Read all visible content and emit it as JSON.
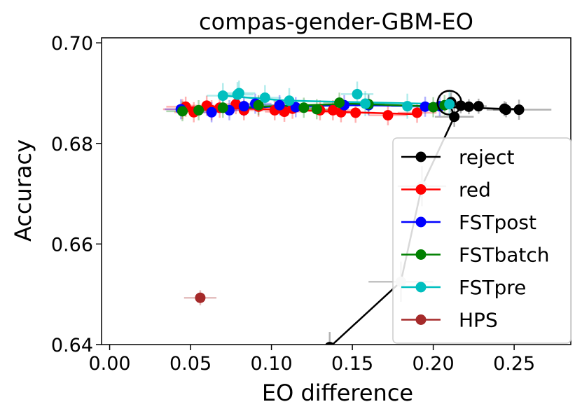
{
  "chart_data": {
    "type": "scatter",
    "title": "compas-gender-GBM-EO",
    "xlabel": "EO difference",
    "ylabel": "Accuracy",
    "xlim": [
      -0.005,
      0.285
    ],
    "ylim": [
      0.64,
      0.701
    ],
    "xticks": [
      0.0,
      0.05,
      0.1,
      0.15,
      0.2,
      0.25
    ],
    "xtick_labels": [
      "0.00",
      "0.05",
      "0.10",
      "0.15",
      "0.20",
      "0.25"
    ],
    "yticks": [
      0.64,
      0.66,
      0.68,
      0.7
    ],
    "ytick_labels": [
      "0.64",
      "0.66",
      "0.68",
      "0.70"
    ],
    "grid": false,
    "legend_position": "lower-right",
    "series": [
      {
        "name": "reject",
        "color": "#000000",
        "connect": true,
        "line_points": [
          {
            "x": 0.136,
            "y": 0.6395
          },
          {
            "x": 0.18,
            "y": 0.6525
          },
          {
            "x": 0.193,
            "y": 0.6715
          },
          {
            "x": 0.213,
            "y": 0.6853
          },
          {
            "x": 0.211,
            "y": 0.6872
          },
          {
            "x": 0.253,
            "y": 0.6868
          }
        ],
        "points": [
          {
            "x": 0.136,
            "y": 0.6395,
            "xerr": 0.005,
            "yerr": 0.003,
            "faded": false
          },
          {
            "x": 0.18,
            "y": 0.6525,
            "xerr": 0.02,
            "yerr": 0.004,
            "faded": true
          },
          {
            "x": 0.193,
            "y": 0.6715,
            "xerr": 0.015,
            "yerr": 0.004,
            "faded": true
          },
          {
            "x": 0.213,
            "y": 0.6853,
            "xerr": 0.012,
            "yerr": 0.002,
            "faded": false
          },
          {
            "x": 0.211,
            "y": 0.6882,
            "xerr": 0.006,
            "yerr": 0.002,
            "faded": false
          },
          {
            "x": 0.217,
            "y": 0.6875,
            "xerr": 0.006,
            "yerr": 0.0015,
            "faded": false
          },
          {
            "x": 0.222,
            "y": 0.6873,
            "xerr": 0.005,
            "yerr": 0.0015,
            "faded": false
          },
          {
            "x": 0.228,
            "y": 0.6874,
            "xerr": 0.005,
            "yerr": 0.0015,
            "faded": false
          },
          {
            "x": 0.244,
            "y": 0.6869,
            "xerr": 0.008,
            "yerr": 0.0015,
            "faded": false
          },
          {
            "x": 0.245,
            "y": 0.6867,
            "xerr": 0.008,
            "yerr": 0.0015,
            "faded": false
          },
          {
            "x": 0.253,
            "y": 0.6867,
            "xerr": 0.02,
            "yerr": 0.002,
            "faded": false
          }
        ]
      },
      {
        "name": "red",
        "color": "#ff0000",
        "connect": true,
        "line_points": [
          {
            "x": 0.045,
            "y": 0.6872
          },
          {
            "x": 0.1,
            "y": 0.6868
          },
          {
            "x": 0.15,
            "y": 0.6862
          },
          {
            "x": 0.19,
            "y": 0.6858
          }
        ],
        "points": [
          {
            "x": 0.045,
            "y": 0.6868,
            "xerr": 0.012,
            "yerr": 0.002,
            "faded": false
          },
          {
            "x": 0.047,
            "y": 0.6873,
            "xerr": 0.012,
            "yerr": 0.002,
            "faded": false
          },
          {
            "x": 0.052,
            "y": 0.6862,
            "xerr": 0.012,
            "yerr": 0.002,
            "faded": false
          },
          {
            "x": 0.06,
            "y": 0.6875,
            "xerr": 0.012,
            "yerr": 0.002,
            "faded": false
          },
          {
            "x": 0.063,
            "y": 0.6866,
            "xerr": 0.012,
            "yerr": 0.002,
            "faded": false
          },
          {
            "x": 0.068,
            "y": 0.6871,
            "xerr": 0.012,
            "yerr": 0.002,
            "faded": false
          },
          {
            "x": 0.078,
            "y": 0.6878,
            "xerr": 0.012,
            "yerr": 0.002,
            "faded": false
          },
          {
            "x": 0.083,
            "y": 0.6866,
            "xerr": 0.012,
            "yerr": 0.002,
            "faded": false
          },
          {
            "x": 0.092,
            "y": 0.6873,
            "xerr": 0.012,
            "yerr": 0.002,
            "faded": false
          },
          {
            "x": 0.102,
            "y": 0.6866,
            "xerr": 0.012,
            "yerr": 0.002,
            "faded": false
          },
          {
            "x": 0.108,
            "y": 0.6863,
            "xerr": 0.012,
            "yerr": 0.002,
            "faded": false
          },
          {
            "x": 0.113,
            "y": 0.6869,
            "xerr": 0.012,
            "yerr": 0.002,
            "faded": false
          },
          {
            "x": 0.13,
            "y": 0.6866,
            "xerr": 0.012,
            "yerr": 0.002,
            "faded": false
          },
          {
            "x": 0.138,
            "y": 0.6866,
            "xerr": 0.012,
            "yerr": 0.002,
            "faded": false
          },
          {
            "x": 0.143,
            "y": 0.6862,
            "xerr": 0.012,
            "yerr": 0.002,
            "faded": false
          },
          {
            "x": 0.152,
            "y": 0.6861,
            "xerr": 0.012,
            "yerr": 0.002,
            "faded": false
          },
          {
            "x": 0.172,
            "y": 0.6856,
            "xerr": 0.012,
            "yerr": 0.002,
            "faded": false
          },
          {
            "x": 0.19,
            "y": 0.6861,
            "xerr": 0.012,
            "yerr": 0.002,
            "faded": false
          }
        ]
      },
      {
        "name": "FSTpost",
        "color": "#0000ff",
        "connect": true,
        "line_points": [
          {
            "x": 0.044,
            "y": 0.6866
          },
          {
            "x": 0.1,
            "y": 0.6873
          },
          {
            "x": 0.15,
            "y": 0.6876
          },
          {
            "x": 0.205,
            "y": 0.6874
          }
        ],
        "points": [
          {
            "x": 0.044,
            "y": 0.6868,
            "xerr": 0.01,
            "yerr": 0.002,
            "faded": false
          },
          {
            "x": 0.063,
            "y": 0.6862,
            "xerr": 0.01,
            "yerr": 0.002,
            "faded": false
          },
          {
            "x": 0.074,
            "y": 0.6866,
            "xerr": 0.01,
            "yerr": 0.002,
            "faded": false
          },
          {
            "x": 0.083,
            "y": 0.6874,
            "xerr": 0.01,
            "yerr": 0.002,
            "faded": false
          },
          {
            "x": 0.09,
            "y": 0.6879,
            "xerr": 0.01,
            "yerr": 0.002,
            "faded": false
          },
          {
            "x": 0.105,
            "y": 0.6876,
            "xerr": 0.01,
            "yerr": 0.002,
            "faded": false
          },
          {
            "x": 0.115,
            "y": 0.6872,
            "xerr": 0.01,
            "yerr": 0.002,
            "faded": false
          },
          {
            "x": 0.145,
            "y": 0.6876,
            "xerr": 0.01,
            "yerr": 0.002,
            "faded": false
          },
          {
            "x": 0.16,
            "y": 0.6876,
            "xerr": 0.01,
            "yerr": 0.002,
            "faded": false
          },
          {
            "x": 0.195,
            "y": 0.6873,
            "xerr": 0.01,
            "yerr": 0.002,
            "faded": false
          },
          {
            "x": 0.204,
            "y": 0.6874,
            "xerr": 0.01,
            "yerr": 0.002,
            "faded": false
          }
        ]
      },
      {
        "name": "FSTbatch",
        "color": "#008000",
        "connect": true,
        "line_points": [
          {
            "x": 0.045,
            "y": 0.6864
          },
          {
            "x": 0.1,
            "y": 0.6874
          },
          {
            "x": 0.15,
            "y": 0.6879
          },
          {
            "x": 0.205,
            "y": 0.6873
          }
        ],
        "points": [
          {
            "x": 0.045,
            "y": 0.6864,
            "xerr": 0.01,
            "yerr": 0.002,
            "faded": false
          },
          {
            "x": 0.055,
            "y": 0.6866,
            "xerr": 0.01,
            "yerr": 0.002,
            "faded": false
          },
          {
            "x": 0.07,
            "y": 0.6871,
            "xerr": 0.01,
            "yerr": 0.002,
            "faded": false
          },
          {
            "x": 0.092,
            "y": 0.6876,
            "xerr": 0.01,
            "yerr": 0.002,
            "faded": false
          },
          {
            "x": 0.12,
            "y": 0.6871,
            "xerr": 0.01,
            "yerr": 0.002,
            "faded": false
          },
          {
            "x": 0.128,
            "y": 0.6868,
            "xerr": 0.01,
            "yerr": 0.002,
            "faded": false
          },
          {
            "x": 0.142,
            "y": 0.6881,
            "xerr": 0.01,
            "yerr": 0.002,
            "faded": false
          },
          {
            "x": 0.16,
            "y": 0.6878,
            "xerr": 0.01,
            "yerr": 0.002,
            "faded": false
          },
          {
            "x": 0.2,
            "y": 0.6872,
            "xerr": 0.01,
            "yerr": 0.002,
            "faded": false
          },
          {
            "x": 0.207,
            "y": 0.6876,
            "xerr": 0.01,
            "yerr": 0.002,
            "faded": false
          }
        ]
      },
      {
        "name": "FSTpre",
        "color": "#00bfbf",
        "connect": true,
        "line_points": [
          {
            "x": 0.07,
            "y": 0.6895
          },
          {
            "x": 0.11,
            "y": 0.6885
          },
          {
            "x": 0.152,
            "y": 0.6882
          },
          {
            "x": 0.21,
            "y": 0.6878
          }
        ],
        "points": [
          {
            "x": 0.07,
            "y": 0.6895,
            "xerr": 0.01,
            "yerr": 0.0025,
            "faded": false
          },
          {
            "x": 0.079,
            "y": 0.6897,
            "xerr": 0.01,
            "yerr": 0.0025,
            "faded": false
          },
          {
            "x": 0.08,
            "y": 0.69,
            "xerr": 0.01,
            "yerr": 0.0025,
            "faded": false
          },
          {
            "x": 0.096,
            "y": 0.6891,
            "xerr": 0.01,
            "yerr": 0.0025,
            "faded": false
          },
          {
            "x": 0.111,
            "y": 0.6885,
            "xerr": 0.01,
            "yerr": 0.0025,
            "faded": false
          },
          {
            "x": 0.153,
            "y": 0.6898,
            "xerr": 0.01,
            "yerr": 0.0025,
            "faded": false
          },
          {
            "x": 0.158,
            "y": 0.6879,
            "xerr": 0.01,
            "yerr": 0.0025,
            "faded": false
          },
          {
            "x": 0.184,
            "y": 0.6874,
            "xerr": 0.01,
            "yerr": 0.0025,
            "faded": false
          },
          {
            "x": 0.21,
            "y": 0.6878,
            "xerr": 0.01,
            "yerr": 0.0025,
            "faded": false
          }
        ]
      },
      {
        "name": "HPS",
        "color": "#a52a2a",
        "connect": false,
        "line_points": [],
        "points": [
          {
            "x": 0.056,
            "y": 0.6493,
            "xerr": 0.01,
            "yerr": 0.0015,
            "faded": false
          }
        ]
      }
    ],
    "annotations": [
      {
        "type": "open-circle",
        "x": 0.21,
        "y": 0.6881,
        "color": "#000000"
      }
    ]
  }
}
